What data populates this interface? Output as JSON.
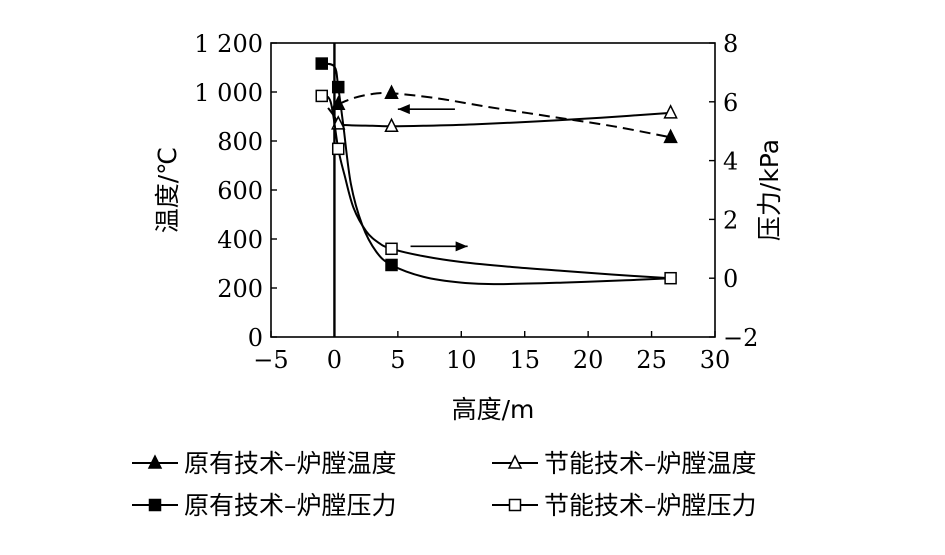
{
  "chart_data": {
    "type": "line",
    "xlabel": "高度/m",
    "ylabel_left": "温度/℃",
    "ylabel_right": "压力/kPa",
    "xlim": [
      -5,
      30
    ],
    "ylim_left": [
      0,
      1200
    ],
    "ylim_right": [
      -2,
      8
    ],
    "x_ticks": [
      -5,
      0,
      5,
      10,
      15,
      20,
      25,
      30
    ],
    "x_tick_labels": [
      "−5",
      "0",
      "5",
      "10",
      "15",
      "20",
      "25",
      "30"
    ],
    "y_left_ticks": [
      0,
      200,
      400,
      600,
      800,
      1000,
      1200
    ],
    "y_left_tick_labels": [
      "0",
      "200",
      "400",
      "600",
      "800",
      "1 000",
      "1 200"
    ],
    "y_right_ticks": [
      -2,
      0,
      2,
      4,
      6,
      8
    ],
    "y_right_tick_labels": [
      "−2",
      "0",
      "2",
      "4",
      "6",
      "8"
    ],
    "vertical_line_x": 0,
    "grid": false,
    "legend_position": "bottom",
    "series": [
      {
        "name": "原有技术–炉膛温度",
        "axis": "left",
        "marker": "filled-triangle",
        "line_style": "dashed",
        "points": [
          [
            0.3,
            950
          ],
          [
            4.5,
            995
          ],
          [
            26.5,
            815
          ]
        ],
        "curve": [
          [
            0.3,
            950
          ],
          [
            1.5,
            975
          ],
          [
            3,
            992
          ],
          [
            4.5,
            995
          ],
          [
            8,
            975
          ],
          [
            12,
            940
          ],
          [
            17,
            900
          ],
          [
            22,
            860
          ],
          [
            26.5,
            815
          ]
        ]
      },
      {
        "name": "节能技术–炉膛温度",
        "axis": "left",
        "marker": "open-triangle",
        "line_style": "solid",
        "points": [
          [
            0.3,
            870
          ],
          [
            4.5,
            860
          ],
          [
            26.5,
            915
          ]
        ],
        "curve": [
          [
            -0.5,
            935
          ],
          [
            0,
            900
          ],
          [
            0.3,
            870
          ],
          [
            1,
            865
          ],
          [
            3,
            862
          ],
          [
            4.5,
            860
          ],
          [
            7,
            862
          ],
          [
            11,
            868
          ],
          [
            16,
            880
          ],
          [
            21,
            895
          ],
          [
            26.5,
            915
          ]
        ]
      },
      {
        "name": "原有技术–炉膛压力",
        "axis": "right",
        "marker": "filled-square",
        "line_style": "solid",
        "points": [
          [
            -1,
            7.3
          ],
          [
            0.3,
            6.5
          ],
          [
            4.5,
            0.45
          ]
        ],
        "curve": [
          [
            -1,
            7.3
          ],
          [
            0,
            7.2
          ],
          [
            0.3,
            6.5
          ],
          [
            0.7,
            5.2
          ],
          [
            1.3,
            3.2
          ],
          [
            2.2,
            1.8
          ],
          [
            3.3,
            0.9
          ],
          [
            4.5,
            0.45
          ],
          [
            7,
            0.05
          ],
          [
            10,
            -0.15
          ],
          [
            13,
            -0.2
          ],
          [
            18,
            -0.15
          ],
          [
            23,
            -0.07
          ],
          [
            26.5,
            0
          ]
        ]
      },
      {
        "name": "节能技术–炉膛压力",
        "axis": "right",
        "marker": "open-square",
        "line_style": "solid",
        "points": [
          [
            -1,
            6.2
          ],
          [
            0.3,
            4.4
          ],
          [
            4.5,
            1
          ],
          [
            26.5,
            0
          ]
        ],
        "curve": [
          [
            -1,
            6.2
          ],
          [
            -0.3,
            6.0
          ],
          [
            0.3,
            4.4
          ],
          [
            0.8,
            3.5
          ],
          [
            1.5,
            2.4
          ],
          [
            2.5,
            1.6
          ],
          [
            3.5,
            1.2
          ],
          [
            4.5,
            1
          ],
          [
            7,
            0.75
          ],
          [
            10,
            0.55
          ],
          [
            14,
            0.38
          ],
          [
            18,
            0.25
          ],
          [
            22,
            0.12
          ],
          [
            26.5,
            0
          ]
        ]
      }
    ],
    "annotations": [
      {
        "type": "arrow",
        "direction": "left",
        "from": [
          9.5,
          930
        ],
        "to": [
          5,
          930
        ],
        "axis": "left"
      },
      {
        "type": "arrow",
        "direction": "right",
        "from": [
          6,
          370
        ],
        "to": [
          10.5,
          370
        ],
        "axis": "left"
      }
    ]
  }
}
